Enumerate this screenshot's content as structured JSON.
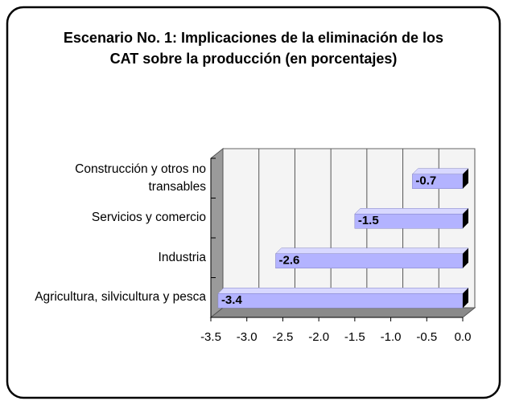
{
  "chart_data": {
    "type": "bar",
    "orientation": "horizontal",
    "title": "Escenario No. 1: Implicaciones de la eliminación de los CAT sobre la producción (en porcentajes)",
    "categories": [
      "Construcción y otros no transables",
      "Servicios y comercio",
      "Industria",
      "Agricultura, silvicultura y pesca"
    ],
    "values": [
      -0.7,
      -1.5,
      -2.6,
      -3.4
    ],
    "color": "#b3b3ff",
    "xlim": [
      -3.5,
      0
    ],
    "xticks": [
      -3.5,
      {
        "value": -3,
        "label": "-3.0"
      },
      -2.5,
      {
        "value": -2,
        "label": "-2.0"
      },
      -1.5,
      {
        "value": -1,
        "label": "-1.0"
      },
      -0.5,
      {
        "value": 0,
        "label": "0.0"
      }
    ],
    "grid": true
  }
}
